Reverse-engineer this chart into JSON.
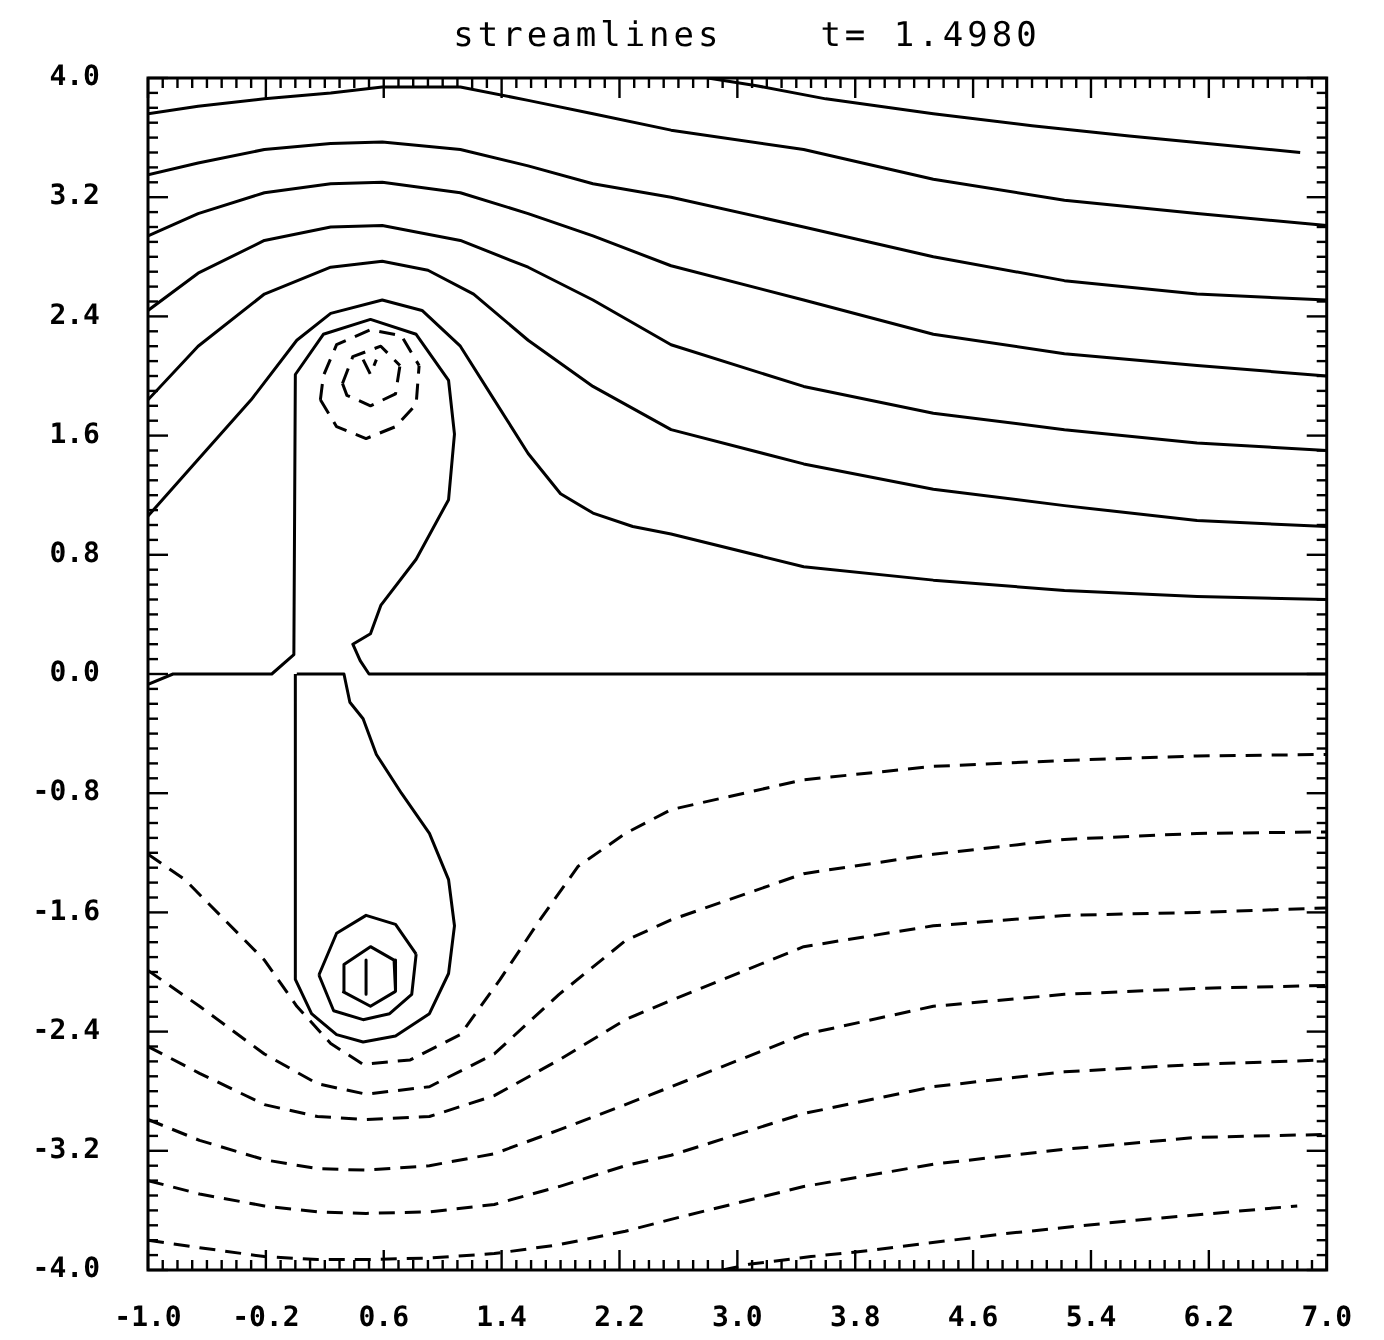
{
  "chart_data": {
    "type": "line",
    "title": "streamlines    t= 1.4980",
    "xlim": [
      -1,
      7
    ],
    "ylim": [
      -4,
      4
    ],
    "xticks": [
      {
        "value": -1,
        "label": "-1.0"
      },
      {
        "value": -0.9,
        "label": null
      },
      {
        "value": -0.8,
        "label": null
      },
      {
        "value": -0.7,
        "label": null
      },
      {
        "value": -0.6,
        "label": null
      },
      {
        "value": -0.5,
        "label": null
      },
      {
        "value": -0.4,
        "label": null
      },
      {
        "value": -0.3,
        "label": null
      },
      -0.2,
      {
        "value": -0.1,
        "label": null
      },
      {
        "value": 0,
        "label": null
      },
      {
        "value": 0.1,
        "label": null
      },
      {
        "value": 0.2,
        "label": null
      },
      {
        "value": 0.3,
        "label": null
      },
      {
        "value": 0.4,
        "label": null
      },
      {
        "value": 0.5,
        "label": null
      },
      0.6,
      {
        "value": 0.7,
        "label": null
      },
      {
        "value": 0.8,
        "label": null
      },
      {
        "value": 0.9,
        "label": null
      },
      {
        "value": 1,
        "label": null
      },
      {
        "value": 1.1,
        "label": null
      },
      {
        "value": 1.2,
        "label": null
      },
      {
        "value": 1.3,
        "label": null
      },
      1.4,
      {
        "value": 1.5,
        "label": null
      },
      {
        "value": 1.6,
        "label": null
      },
      {
        "value": 1.7,
        "label": null
      },
      {
        "value": 1.8,
        "label": null
      },
      {
        "value": 1.9,
        "label": null
      },
      {
        "value": 2,
        "label": null
      },
      {
        "value": 2.1,
        "label": null
      },
      2.2,
      {
        "value": 2.3,
        "label": null
      },
      {
        "value": 2.4,
        "label": null
      },
      {
        "value": 2.5,
        "label": null
      },
      {
        "value": 2.6,
        "label": null
      },
      {
        "value": 2.7,
        "label": null
      },
      {
        "value": 2.8,
        "label": null
      },
      {
        "value": 2.9,
        "label": null
      },
      {
        "value": 3,
        "label": "3.0"
      },
      {
        "value": 3.1,
        "label": null
      },
      {
        "value": 3.2,
        "label": null
      },
      {
        "value": 3.3,
        "label": null
      },
      {
        "value": 3.4,
        "label": null
      },
      {
        "value": 3.5,
        "label": null
      },
      {
        "value": 3.6,
        "label": null
      },
      {
        "value": 3.7,
        "label": null
      },
      3.8,
      {
        "value": 3.9,
        "label": null
      },
      {
        "value": 4,
        "label": null
      },
      {
        "value": 4.1,
        "label": null
      },
      {
        "value": 4.2,
        "label": null
      },
      {
        "value": 4.3,
        "label": null
      },
      {
        "value": 4.4,
        "label": null
      },
      {
        "value": 4.5,
        "label": null
      },
      4.6,
      {
        "value": 4.7,
        "label": null
      },
      {
        "value": 4.8,
        "label": null
      },
      {
        "value": 4.9,
        "label": null
      },
      {
        "value": 5,
        "label": null
      },
      {
        "value": 5.1,
        "label": null
      },
      {
        "value": 5.2,
        "label": null
      },
      {
        "value": 5.3,
        "label": null
      },
      5.4,
      {
        "value": 5.5,
        "label": null
      },
      {
        "value": 5.6,
        "label": null
      },
      {
        "value": 5.7,
        "label": null
      },
      {
        "value": 5.8,
        "label": null
      },
      {
        "value": 5.9,
        "label": null
      },
      {
        "value": 6,
        "label": null
      },
      {
        "value": 6.1,
        "label": null
      },
      6.2,
      {
        "value": 6.3,
        "label": null
      },
      {
        "value": 6.4,
        "label": null
      },
      {
        "value": 6.5,
        "label": null
      },
      {
        "value": 6.6,
        "label": null
      },
      {
        "value": 6.7,
        "label": null
      },
      {
        "value": 6.8,
        "label": null
      },
      {
        "value": 6.9,
        "label": null
      },
      {
        "value": 7,
        "label": "7.0"
      }
    ],
    "yticks": [
      {
        "value": -4,
        "label": "-4.0"
      },
      {
        "value": -3.9,
        "label": null
      },
      {
        "value": -3.8,
        "label": null
      },
      {
        "value": -3.7,
        "label": null
      },
      {
        "value": -3.6,
        "label": null
      },
      {
        "value": -3.5,
        "label": null
      },
      {
        "value": -3.4,
        "label": null
      },
      {
        "value": -3.3,
        "label": null
      },
      -3.2,
      {
        "value": -3.1,
        "label": null
      },
      {
        "value": -3,
        "label": null
      },
      {
        "value": -2.9,
        "label": null
      },
      {
        "value": -2.8,
        "label": null
      },
      {
        "value": -2.7,
        "label": null
      },
      {
        "value": -2.6,
        "label": null
      },
      {
        "value": -2.5,
        "label": null
      },
      -2.4,
      {
        "value": -2.3,
        "label": null
      },
      {
        "value": -2.2,
        "label": null
      },
      {
        "value": -2.1,
        "label": null
      },
      {
        "value": -2,
        "label": null
      },
      {
        "value": -1.9,
        "label": null
      },
      {
        "value": -1.8,
        "label": null
      },
      {
        "value": -1.7,
        "label": null
      },
      -1.6,
      {
        "value": -1.5,
        "label": null
      },
      {
        "value": -1.4,
        "label": null
      },
      {
        "value": -1.3,
        "label": null
      },
      {
        "value": -1.2,
        "label": null
      },
      {
        "value": -1.1,
        "label": null
      },
      {
        "value": -1,
        "label": null
      },
      {
        "value": -0.9,
        "label": null
      },
      -0.8,
      {
        "value": -0.7,
        "label": null
      },
      {
        "value": -0.6,
        "label": null
      },
      {
        "value": -0.5,
        "label": null
      },
      {
        "value": -0.4,
        "label": null
      },
      {
        "value": -0.3,
        "label": null
      },
      {
        "value": -0.2,
        "label": null
      },
      {
        "value": -0.1,
        "label": null
      },
      {
        "value": 0,
        "label": "0.0"
      },
      {
        "value": 0.1,
        "label": null
      },
      {
        "value": 0.2,
        "label": null
      },
      {
        "value": 0.3,
        "label": null
      },
      {
        "value": 0.4,
        "label": null
      },
      {
        "value": 0.5,
        "label": null
      },
      {
        "value": 0.6,
        "label": null
      },
      {
        "value": 0.7,
        "label": null
      },
      0.8,
      {
        "value": 0.9,
        "label": null
      },
      {
        "value": 1,
        "label": null
      },
      {
        "value": 1.1,
        "label": null
      },
      {
        "value": 1.2,
        "label": null
      },
      {
        "value": 1.3,
        "label": null
      },
      {
        "value": 1.4,
        "label": null
      },
      {
        "value": 1.5,
        "label": null
      },
      1.6,
      {
        "value": 1.7,
        "label": null
      },
      {
        "value": 1.8,
        "label": null
      },
      {
        "value": 1.9,
        "label": null
      },
      {
        "value": 2,
        "label": null
      },
      {
        "value": 2.1,
        "label": null
      },
      {
        "value": 2.2,
        "label": null
      },
      {
        "value": 2.3,
        "label": null
      },
      2.4,
      {
        "value": 2.5,
        "label": null
      },
      {
        "value": 2.6,
        "label": null
      },
      {
        "value": 2.7,
        "label": null
      },
      {
        "value": 2.8,
        "label": null
      },
      {
        "value": 2.9,
        "label": null
      },
      {
        "value": 3,
        "label": null
      },
      {
        "value": 3.1,
        "label": null
      },
      3.2,
      {
        "value": 3.3,
        "label": null
      },
      {
        "value": 3.4,
        "label": null
      },
      {
        "value": 3.5,
        "label": null
      },
      {
        "value": 3.6,
        "label": null
      },
      {
        "value": 3.7,
        "label": null
      },
      {
        "value": 3.8,
        "label": null
      },
      {
        "value": 3.9,
        "label": null
      },
      {
        "value": 4,
        "label": "4.0"
      }
    ],
    "marker": "none",
    "series": [
      {
        "color": "#000000",
        "line_style": "solid",
        "x": [
          2.8,
          3.12,
          3.6,
          4.33,
          5.0,
          5.66,
          6.82
        ],
        "values": [
          4.0,
          3.95,
          3.86,
          3.76,
          3.68,
          3.61,
          3.5
        ]
      },
      {
        "color": "#000000",
        "line_style": "solid",
        "x": [
          -1.0,
          -0.66,
          -0.21,
          0.24,
          0.59,
          1.12,
          1.58,
          2.02,
          2.55,
          3.45,
          4.33,
          5.22,
          6.12,
          7.0
        ],
        "values": [
          3.76,
          3.81,
          3.86,
          3.9,
          3.94,
          3.94,
          3.85,
          3.76,
          3.65,
          3.52,
          3.32,
          3.18,
          3.09,
          3.01
        ]
      },
      {
        "color": "#000000",
        "line_style": "solid",
        "x": [
          -1.0,
          -0.66,
          -0.21,
          0.24,
          0.59,
          1.12,
          1.58,
          2.02,
          2.55,
          3.45,
          4.33,
          5.22,
          6.12,
          7.0
        ],
        "values": [
          3.35,
          3.43,
          3.52,
          3.56,
          3.57,
          3.52,
          3.41,
          3.29,
          3.2,
          3.0,
          2.8,
          2.64,
          2.55,
          2.51
        ]
      },
      {
        "color": "#000000",
        "line_style": "solid",
        "x": [
          -1.0,
          -0.66,
          -0.21,
          0.24,
          0.59,
          1.12,
          1.58,
          2.02,
          2.55,
          3.45,
          4.33,
          5.22,
          6.12,
          7.0
        ],
        "values": [
          2.94,
          3.09,
          3.23,
          3.29,
          3.3,
          3.23,
          3.09,
          2.94,
          2.74,
          2.51,
          2.28,
          2.15,
          2.07,
          2.0
        ]
      },
      {
        "color": "#000000",
        "line_style": "solid",
        "x": [
          -1.0,
          -0.66,
          -0.21,
          0.24,
          0.59,
          1.12,
          1.58,
          2.02,
          2.55,
          3.45,
          4.33,
          5.22,
          6.12,
          7.0
        ],
        "values": [
          2.44,
          2.69,
          2.91,
          3.0,
          3.01,
          2.91,
          2.73,
          2.51,
          2.21,
          1.93,
          1.75,
          1.64,
          1.55,
          1.5
        ]
      },
      {
        "color": "#000000",
        "line_style": "solid",
        "x": [
          -1.0,
          -0.66,
          -0.21,
          0.24,
          0.59,
          0.9,
          1.21,
          1.58,
          2.02,
          2.55,
          3.45,
          4.33,
          5.22,
          6.12,
          7.0
        ],
        "values": [
          1.84,
          2.2,
          2.55,
          2.73,
          2.77,
          2.71,
          2.55,
          2.24,
          1.93,
          1.64,
          1.41,
          1.24,
          1.13,
          1.03,
          0.99
        ]
      },
      {
        "color": "#000000",
        "line_style": "solid",
        "x": [
          -1.0,
          -0.66,
          -0.3,
          0.01,
          0.24,
          0.59,
          0.86,
          1.12,
          1.35,
          1.58,
          1.8,
          2.02,
          2.29,
          2.55,
          3.45,
          4.33,
          5.22,
          6.12,
          7.0
        ],
        "values": [
          1.06,
          1.44,
          1.84,
          2.24,
          2.42,
          2.51,
          2.44,
          2.2,
          1.84,
          1.48,
          1.21,
          1.08,
          0.99,
          0.94,
          0.72,
          0.63,
          0.56,
          0.52,
          0.5
        ]
      },
      {
        "color": "#000000",
        "line_style": "solid",
        "x": [
          -1.0,
          -0.83,
          -0.16,
          -0.01,
          0.0,
          0.19,
          0.51,
          0.82,
          1.04,
          1.08,
          1.04,
          0.82,
          0.58,
          0.51,
          0.39,
          0.44,
          0.5,
          7.0
        ],
        "values": [
          -0.07,
          0.0,
          0.0,
          0.13,
          2.01,
          2.28,
          2.38,
          2.28,
          1.97,
          1.61,
          1.17,
          0.77,
          0.46,
          0.27,
          0.2,
          0.09,
          0.0,
          0.0
        ]
      },
      {
        "color": "#000000",
        "line_style": "solid",
        "x": [
          0.01,
          0.33,
          0.37,
          0.46,
          0.55,
          0.72,
          0.91,
          1.04,
          1.08,
          1.04,
          0.91,
          0.68,
          0.46,
          0.28,
          0.11,
          0.0,
          0.0
        ],
        "values": [
          0.0,
          0.0,
          -0.19,
          -0.3,
          -0.54,
          -0.8,
          -1.07,
          -1.38,
          -1.69,
          -2.01,
          -2.28,
          -2.43,
          -2.47,
          -2.42,
          -2.28,
          -2.05,
          0.0
        ]
      },
      {
        "color": "#000000",
        "line_style": "dashed",
        "x": [
          0.17,
          0.19,
          0.28,
          0.51,
          0.72,
          0.84
        ],
        "values": [
          1.84,
          2.0,
          2.21,
          2.31,
          2.27,
          2.07
        ]
      },
      {
        "color": "#000000",
        "line_style": "dashed",
        "x": [
          0.17,
          0.28,
          0.48,
          0.68,
          0.82,
          0.84
        ],
        "values": [
          1.84,
          1.66,
          1.58,
          1.66,
          1.81,
          2.07
        ]
      },
      {
        "color": "#000000",
        "line_style": "dashed",
        "x": [
          0.32,
          0.39,
          0.58,
          0.71
        ],
        "values": [
          1.95,
          2.13,
          2.2,
          2.07
        ]
      },
      {
        "color": "#000000",
        "line_style": "dashed",
        "x": [
          0.32,
          0.35,
          0.51,
          0.68,
          0.71
        ],
        "values": [
          1.95,
          1.87,
          1.8,
          1.88,
          2.07
        ]
      },
      {
        "color": "#000000",
        "line_style": "dashed",
        "x": [
          0.46,
          0.51,
          0.55
        ],
        "values": [
          2.11,
          2.01,
          2.11
        ]
      },
      {
        "color": "#000000",
        "line_style": "solid",
        "x": [
          0.16,
          0.28,
          0.48,
          0.68,
          0.82
        ],
        "values": [
          -2.02,
          -1.74,
          -1.62,
          -1.68,
          -1.88
        ]
      },
      {
        "color": "#000000",
        "line_style": "solid",
        "x": [
          0.16,
          0.26,
          0.46,
          0.64,
          0.79,
          0.82
        ],
        "values": [
          -2.02,
          -2.26,
          -2.32,
          -2.28,
          -2.15,
          -1.88
        ]
      },
      {
        "color": "#000000",
        "line_style": "solid",
        "x": [
          0.32,
          0.33,
          0.51,
          0.67,
          0.68
        ],
        "values": [
          -2.13,
          -1.95,
          -1.83,
          -1.92,
          -2.13
        ]
      },
      {
        "color": "#000000",
        "line_style": "solid",
        "x": [
          0.32,
          0.51,
          0.68
        ],
        "values": [
          -2.13,
          -2.23,
          -2.13
        ]
      },
      {
        "color": "#000000",
        "line_style": "solid",
        "x": [
          0.48,
          0.48
        ],
        "values": [
          -1.92,
          -2.15
        ]
      },
      {
        "color": "#000000",
        "line_style": "dashed",
        "x": [
          -1.0,
          -0.75,
          -0.48,
          -0.21,
          0.01,
          0.24,
          0.46,
          0.78,
          1.12,
          1.39,
          1.66,
          1.92,
          2.24,
          2.55,
          3.45,
          4.33,
          5.22,
          6.12,
          7.0
        ],
        "values": [
          -1.21,
          -1.38,
          -1.65,
          -1.92,
          -2.23,
          -2.48,
          -2.62,
          -2.59,
          -2.42,
          -2.05,
          -1.65,
          -1.29,
          -1.07,
          -0.91,
          -0.71,
          -0.62,
          -0.58,
          -0.55,
          -0.54
        ]
      },
      {
        "color": "#000000",
        "line_style": "dashed",
        "x": [
          -1.0,
          -0.65,
          -0.21,
          0.15,
          0.48,
          0.91,
          1.35,
          1.79,
          2.24,
          2.55,
          3.45,
          4.33,
          5.22,
          6.12,
          7.0
        ],
        "values": [
          -1.99,
          -2.23,
          -2.55,
          -2.75,
          -2.82,
          -2.77,
          -2.55,
          -2.15,
          -1.79,
          -1.65,
          -1.34,
          -1.21,
          -1.11,
          -1.07,
          -1.06
        ]
      },
      {
        "color": "#000000",
        "line_style": "dashed",
        "x": [
          -1.0,
          -0.65,
          -0.21,
          0.15,
          0.48,
          0.91,
          1.35,
          1.79,
          2.24,
          2.55,
          3.45,
          4.33,
          5.22,
          6.12,
          7.0
        ],
        "values": [
          -2.5,
          -2.68,
          -2.89,
          -2.97,
          -2.99,
          -2.97,
          -2.83,
          -2.59,
          -2.32,
          -2.19,
          -1.83,
          -1.69,
          -1.62,
          -1.6,
          -1.57
        ]
      },
      {
        "color": "#000000",
        "line_style": "dashed",
        "x": [
          -1.0,
          -0.65,
          -0.21,
          0.15,
          0.48,
          0.91,
          1.35,
          1.79,
          2.24,
          2.55,
          3.45,
          4.33,
          5.22,
          6.12,
          7.0
        ],
        "values": [
          -2.99,
          -3.13,
          -3.26,
          -3.32,
          -3.33,
          -3.3,
          -3.22,
          -3.06,
          -2.89,
          -2.77,
          -2.42,
          -2.23,
          -2.15,
          -2.11,
          -2.09
        ]
      },
      {
        "color": "#000000",
        "line_style": "dashed",
        "x": [
          -1.0,
          -0.65,
          -0.21,
          0.15,
          0.48,
          0.91,
          1.35,
          1.79,
          2.24,
          2.55,
          3.45,
          4.33,
          5.22,
          6.12,
          7.0
        ],
        "values": [
          -3.4,
          -3.49,
          -3.57,
          -3.61,
          -3.62,
          -3.61,
          -3.56,
          -3.44,
          -3.3,
          -3.23,
          -2.95,
          -2.77,
          -2.67,
          -2.62,
          -2.59
        ]
      },
      {
        "color": "#000000",
        "line_style": "dashed",
        "x": [
          -1.0,
          -0.65,
          -0.21,
          0.15,
          0.48,
          0.91,
          1.35,
          1.79,
          2.24,
          2.55,
          3.45,
          4.33,
          5.22,
          6.12,
          7.0
        ],
        "values": [
          -3.8,
          -3.85,
          -3.91,
          -3.93,
          -3.93,
          -3.92,
          -3.89,
          -3.83,
          -3.74,
          -3.66,
          -3.44,
          -3.29,
          -3.19,
          -3.11,
          -3.09
        ]
      },
      {
        "color": "#000000",
        "line_style": "dashed",
        "x": [
          2.9,
          3.09,
          3.5,
          3.89,
          4.78,
          5.66,
          6.8
        ],
        "values": [
          -4.0,
          -3.96,
          -3.91,
          -3.87,
          -3.76,
          -3.67,
          -3.57
        ]
      }
    ]
  }
}
